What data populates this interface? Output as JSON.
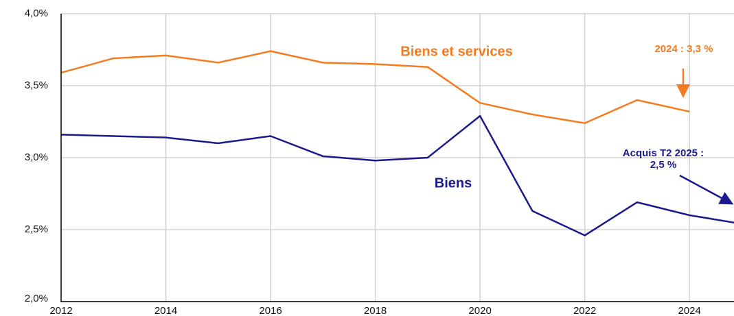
{
  "chart_data": {
    "type": "line",
    "x": [
      2012,
      2013,
      2014,
      2015,
      2016,
      2017,
      2018,
      2019,
      2020,
      2021,
      2022,
      2023,
      2024,
      2025
    ],
    "series": [
      {
        "name": "Biens et services",
        "color": "#f47b20",
        "values": [
          3.59,
          3.69,
          3.71,
          3.66,
          3.74,
          3.66,
          3.65,
          3.63,
          3.38,
          3.3,
          3.24,
          3.4,
          3.32,
          null
        ]
      },
      {
        "name": "Biens",
        "color": "#1a1a8c",
        "values": [
          3.16,
          3.15,
          3.14,
          3.1,
          3.15,
          3.01,
          2.98,
          3.0,
          3.29,
          2.63,
          2.46,
          2.69,
          2.6,
          2.54
        ]
      }
    ],
    "annotations": [
      {
        "lines": [
          "2024 : 3,3 %"
        ],
        "color": "#f47b20"
      },
      {
        "lines": [
          "Acquis T2 2025 :",
          "2,5 %"
        ],
        "color": "#1a1a8c"
      }
    ],
    "xlim": [
      2012,
      2024.85
    ],
    "xticks": [
      2012,
      2014,
      2016,
      2018,
      2020,
      2022,
      2024
    ],
    "ylim": [
      2.0,
      4.0
    ],
    "yticks": [
      {
        "value": 2.0,
        "label": "2,0%"
      },
      {
        "value": 2.5,
        "label": "2,5%"
      },
      {
        "value": 3.0,
        "label": "3,0%"
      },
      {
        "value": 3.5,
        "label": "3,5%"
      },
      {
        "value": 4.0,
        "label": "4,0%"
      }
    ],
    "grid": true
  }
}
